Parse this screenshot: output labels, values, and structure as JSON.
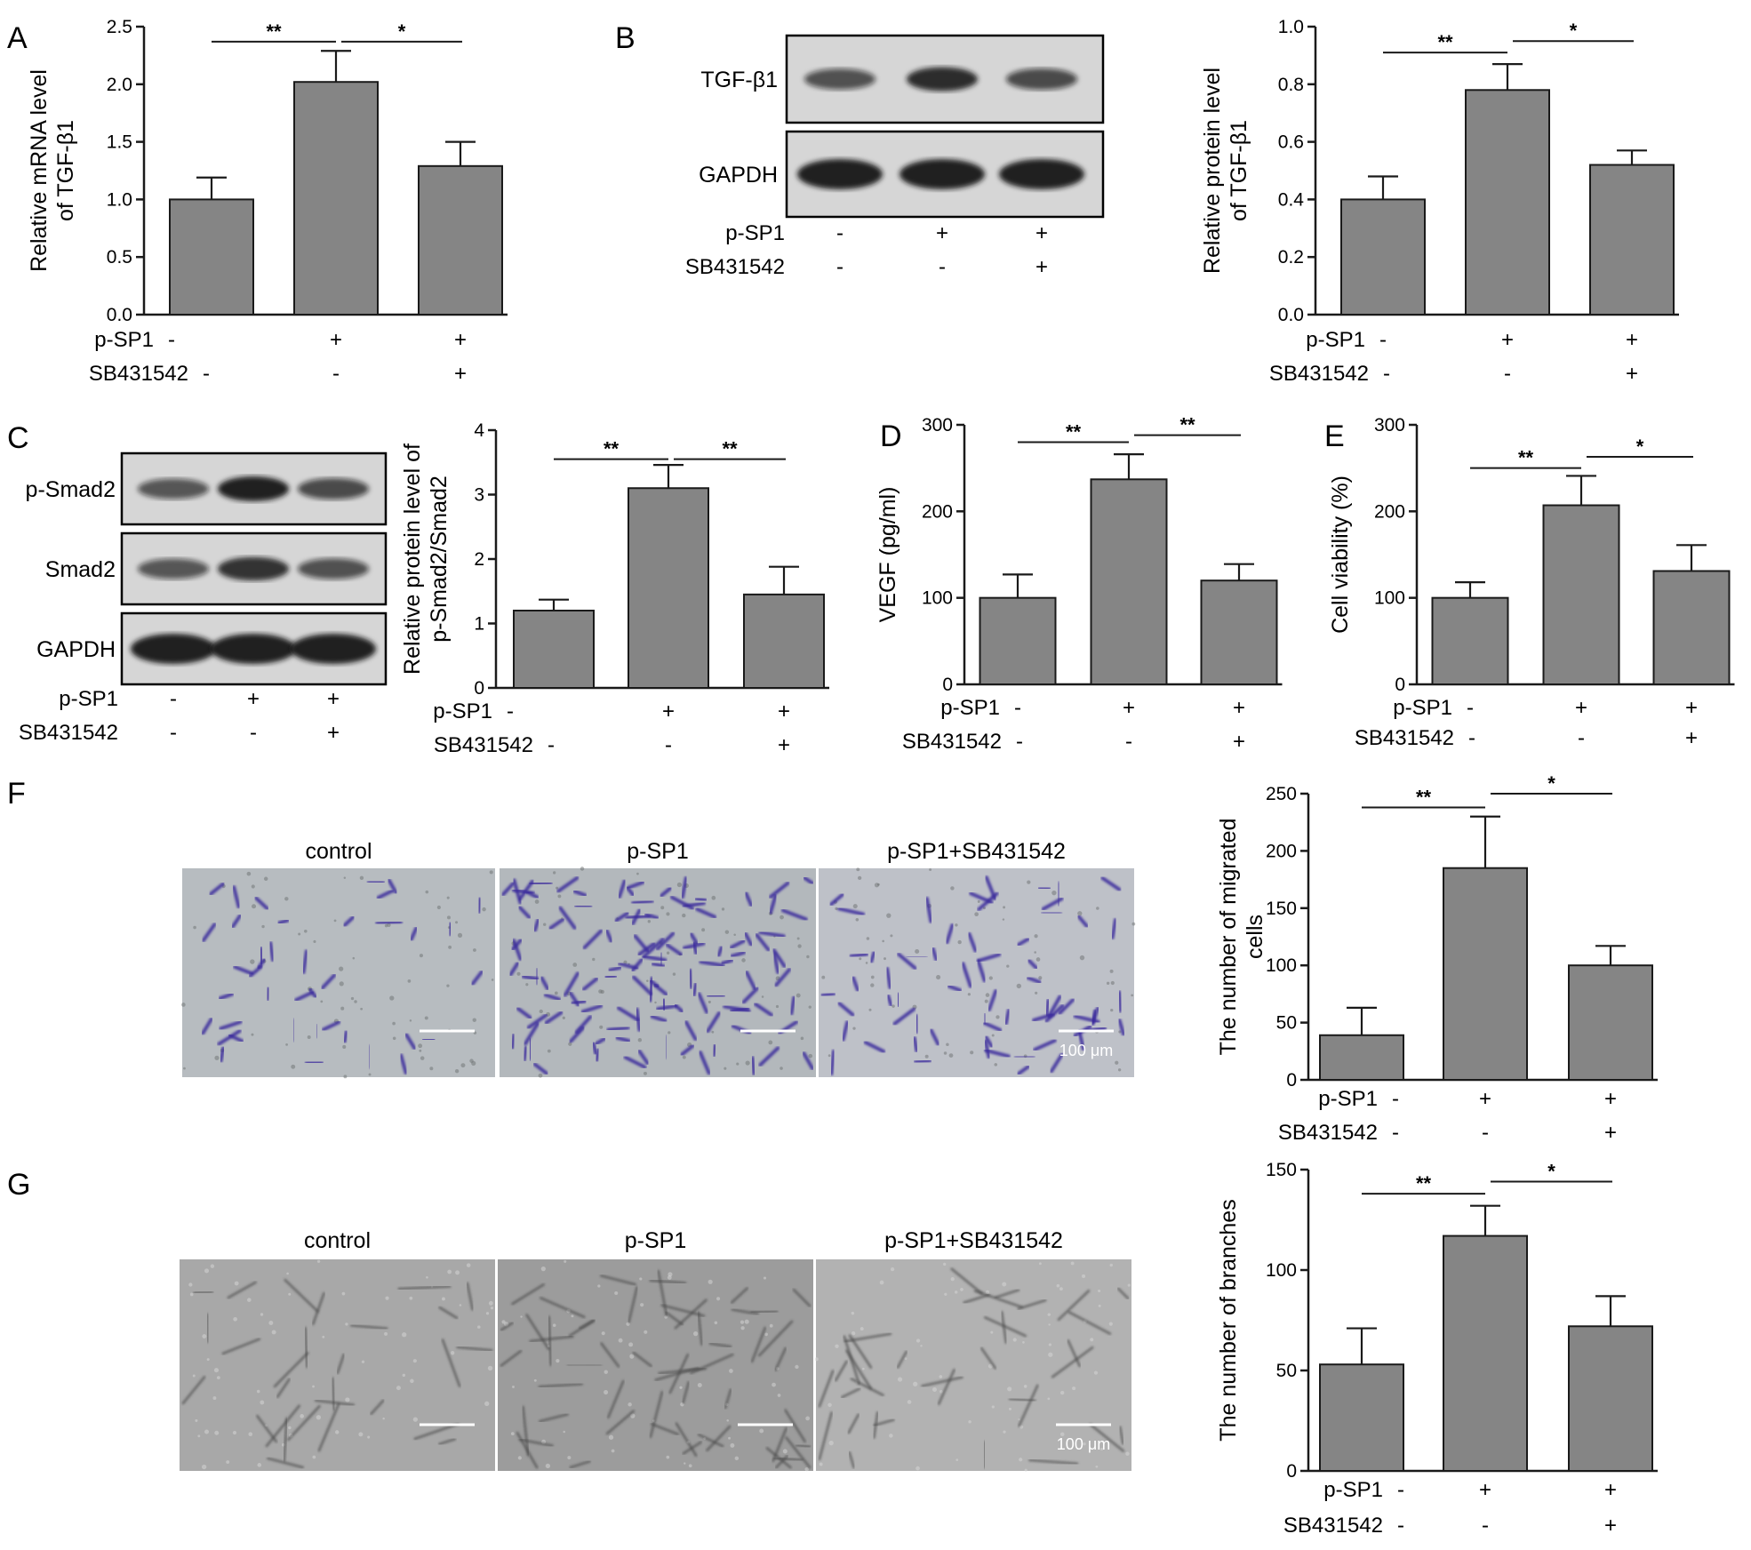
{
  "conditions": {
    "p_sp1": {
      "label": "p-SP1",
      "values": [
        "-",
        "+",
        "+"
      ]
    },
    "sb431542": {
      "label": "SB431542",
      "values": [
        "-",
        "-",
        "+"
      ]
    }
  },
  "colors": {
    "bar": "#858585",
    "axis": "#1a1a1a",
    "blot_bg": "#d6d6d6",
    "band": "#141414"
  },
  "chart_data": [
    {
      "id": "A",
      "letter": "A",
      "type": "bar",
      "ylabel_lines": [
        "Relative mRNA level",
        "of TGF-β1"
      ],
      "ylim": [
        0,
        2.5
      ],
      "ticks": [
        "0.0",
        "0.5",
        "1.0",
        "1.5",
        "2.0",
        "2.5"
      ],
      "values": [
        1.0,
        2.02,
        1.29
      ],
      "errors": [
        0.19,
        0.27,
        0.21
      ],
      "significance": [
        {
          "from": 0,
          "to": 1,
          "label": "**",
          "y": 2.37
        },
        {
          "from": 1,
          "to": 2,
          "label": "*",
          "y": 2.37
        }
      ]
    },
    {
      "id": "B",
      "letter": "B",
      "type": "bar",
      "ylabel_lines": [
        "Relative protein level",
        "of TGF-β1"
      ],
      "ylim": [
        0,
        1.0
      ],
      "ticks": [
        "0.0",
        "0.2",
        "0.4",
        "0.6",
        "0.8",
        "1.0"
      ],
      "values": [
        0.4,
        0.78,
        0.52
      ],
      "errors": [
        0.08,
        0.09,
        0.05
      ],
      "significance": [
        {
          "from": 0,
          "to": 1,
          "label": "**",
          "y": 0.91
        },
        {
          "from": 1,
          "to": 2,
          "label": "*",
          "y": 0.95
        }
      ]
    },
    {
      "id": "C",
      "letter": "",
      "type": "bar",
      "ylabel_lines": [
        "Relative protein level of",
        "p-Smad2/Smad2"
      ],
      "ylim": [
        0,
        4
      ],
      "ticks": [
        "0",
        "1",
        "2",
        "3",
        "4"
      ],
      "values": [
        1.2,
        3.1,
        1.45
      ],
      "errors": [
        0.17,
        0.36,
        0.43
      ],
      "significance": [
        {
          "from": 0,
          "to": 1,
          "label": "**",
          "y": 3.55
        },
        {
          "from": 1,
          "to": 2,
          "label": "**",
          "y": 3.55
        }
      ]
    },
    {
      "id": "D",
      "letter": "D",
      "type": "bar",
      "ylabel_lines": [
        "VEGF (pg/ml)"
      ],
      "ylim": [
        0,
        300
      ],
      "ticks": [
        "0",
        "100",
        "200",
        "300"
      ],
      "values": [
        100,
        237,
        120
      ],
      "errors": [
        27,
        29,
        19
      ],
      "significance": [
        {
          "from": 0,
          "to": 1,
          "label": "**",
          "y": 280
        },
        {
          "from": 1,
          "to": 2,
          "label": "**",
          "y": 288
        }
      ]
    },
    {
      "id": "E",
      "letter": "E",
      "type": "bar",
      "ylabel_lines": [
        "Cell viability (%)"
      ],
      "ylim": [
        0,
        300
      ],
      "ticks": [
        "0",
        "100",
        "200",
        "300"
      ],
      "values": [
        100,
        207,
        131
      ],
      "errors": [
        18,
        34,
        30
      ],
      "significance": [
        {
          "from": 0,
          "to": 1,
          "label": "**",
          "y": 250
        },
        {
          "from": 1,
          "to": 2,
          "label": "*",
          "y": 263
        }
      ]
    },
    {
      "id": "F",
      "letter": "",
      "type": "bar",
      "ylabel_lines": [
        "The number of migrated",
        "cells"
      ],
      "ylim": [
        0,
        250
      ],
      "ticks": [
        "0",
        "50",
        "100",
        "150",
        "200",
        "250"
      ],
      "values": [
        39,
        185,
        100
      ],
      "errors": [
        24,
        45,
        17
      ],
      "significance": [
        {
          "from": 0,
          "to": 1,
          "label": "**",
          "y": 238
        },
        {
          "from": 1,
          "to": 2,
          "label": "*",
          "y": 250
        }
      ]
    },
    {
      "id": "G",
      "letter": "",
      "type": "bar",
      "ylabel_lines": [
        "The number of branches"
      ],
      "ylim": [
        0,
        150
      ],
      "ticks": [
        "0",
        "50",
        "100",
        "150"
      ],
      "values": [
        53,
        117,
        72
      ],
      "errors": [
        18,
        15,
        15
      ],
      "significance": [
        {
          "from": 0,
          "to": 1,
          "label": "**",
          "y": 138
        },
        {
          "from": 1,
          "to": 2,
          "label": "*",
          "y": 144
        }
      ]
    }
  ],
  "blots": {
    "B": {
      "lanes": [
        {
          "label": "TGF-β1",
          "intensity": [
            0.55,
            0.9,
            0.6
          ]
        },
        {
          "label": "GAPDH",
          "intensity": [
            1,
            1,
            1
          ]
        }
      ]
    },
    "C": {
      "letter": "C",
      "lanes": [
        {
          "label": "p-Smad2",
          "intensity": [
            0.5,
            1,
            0.6
          ]
        },
        {
          "label": "Smad2",
          "intensity": [
            0.5,
            0.85,
            0.55
          ]
        },
        {
          "label": "GAPDH",
          "intensity": [
            1,
            1,
            1
          ]
        }
      ]
    }
  },
  "images": {
    "F": {
      "letter": "F",
      "titles": [
        "control",
        "p-SP1",
        "p-SP1+SB431542"
      ],
      "scale": "100 μm"
    },
    "G": {
      "letter": "G",
      "titles": [
        "control",
        "p-SP1",
        "p-SP1+SB431542"
      ],
      "scale": "100 μm"
    }
  }
}
